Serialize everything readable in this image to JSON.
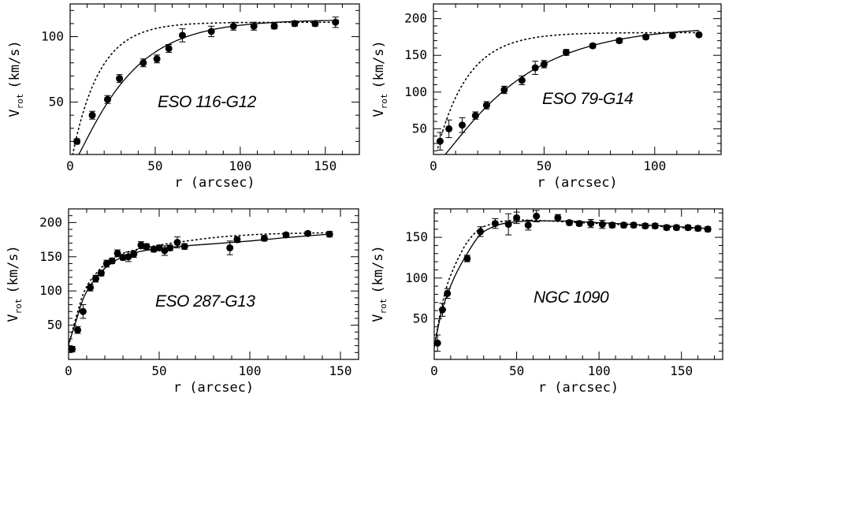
{
  "chart_data": [
    {
      "type": "scatter",
      "galaxy": "ESO 116-G12",
      "xlabel": "r (arcsec)",
      "ylabel_main": "V",
      "ylabel_sub": "rot",
      "ylabel_unit": "(km/s)",
      "xlim": [
        0,
        170
      ],
      "ylim": [
        10,
        125
      ],
      "xticks": [
        0,
        50,
        100,
        150
      ],
      "yticks": [
        50,
        100
      ],
      "points": [
        {
          "x": 4,
          "y": 20,
          "err": 2
        },
        {
          "x": 13,
          "y": 40,
          "err": 3
        },
        {
          "x": 22,
          "y": 52,
          "err": 3
        },
        {
          "x": 29,
          "y": 68,
          "err": 3
        },
        {
          "x": 43,
          "y": 80,
          "err": 3
        },
        {
          "x": 51,
          "y": 83,
          "err": 3
        },
        {
          "x": 58,
          "y": 91,
          "err": 3
        },
        {
          "x": 66,
          "y": 101,
          "err": 5
        },
        {
          "x": 83,
          "y": 104,
          "err": 4
        },
        {
          "x": 96,
          "y": 108,
          "err": 3
        },
        {
          "x": 108,
          "y": 108,
          "err": 3
        },
        {
          "x": 120,
          "y": 108,
          "err": 2
        },
        {
          "x": 132,
          "y": 110,
          "err": 2
        },
        {
          "x": 144,
          "y": 110,
          "err": 2
        },
        {
          "x": 156,
          "y": 111,
          "err": 4
        }
      ],
      "model_solid": {
        "vmax": 113,
        "rt": 28,
        "a": 1.35,
        "x0": 0,
        "x1": 158
      },
      "model_dotted": {
        "vmax": 111,
        "rt": 16,
        "a": 1.0,
        "x0": 0,
        "x1": 158
      }
    },
    {
      "type": "scatter",
      "galaxy": "ESO 79-G14",
      "xlabel": "r (arcsec)",
      "ylabel_main": "V",
      "ylabel_sub": "rot",
      "ylabel_unit": "(km/s)",
      "xlim": [
        0,
        130
      ],
      "ylim": [
        15,
        220
      ],
      "xticks": [
        0,
        50,
        100
      ],
      "yticks": [
        50,
        100,
        150,
        200
      ],
      "points": [
        {
          "x": 3,
          "y": 33,
          "err": 12
        },
        {
          "x": 7,
          "y": 50,
          "err": 12
        },
        {
          "x": 13,
          "y": 55,
          "err": 10
        },
        {
          "x": 19,
          "y": 68,
          "err": 5
        },
        {
          "x": 24,
          "y": 82,
          "err": 5
        },
        {
          "x": 32,
          "y": 103,
          "err": 5
        },
        {
          "x": 40,
          "y": 116,
          "err": 6
        },
        {
          "x": 46,
          "y": 133,
          "err": 9
        },
        {
          "x": 50,
          "y": 138,
          "err": 5
        },
        {
          "x": 60,
          "y": 154,
          "err": 4
        },
        {
          "x": 72,
          "y": 163,
          "err": 3
        },
        {
          "x": 84,
          "y": 170,
          "err": 3
        },
        {
          "x": 96,
          "y": 175,
          "err": 3
        },
        {
          "x": 108,
          "y": 177,
          "err": 2
        },
        {
          "x": 120,
          "y": 178,
          "err": 2
        }
      ],
      "model_solid": {
        "vmax": 190,
        "rt": 32,
        "a": 1.35,
        "x0": 2,
        "x1": 120
      },
      "model_dotted": {
        "vmax": 181,
        "rt": 14,
        "a": 1.0,
        "x0": 2,
        "x1": 120
      }
    },
    {
      "type": "scatter",
      "galaxy": "ESO 287-G13",
      "xlabel": "r (arcsec)",
      "ylabel_main": "V",
      "ylabel_sub": "rot",
      "ylabel_unit": "(km/s)",
      "xlim": [
        0,
        160
      ],
      "ylim": [
        0,
        220
      ],
      "xticks": [
        0,
        50,
        100,
        150
      ],
      "yticks": [
        50,
        100,
        150,
        200
      ],
      "points": [
        {
          "x": 2,
          "y": 15,
          "err": 4
        },
        {
          "x": 5,
          "y": 43,
          "err": 5
        },
        {
          "x": 8,
          "y": 70,
          "err": 10
        },
        {
          "x": 12,
          "y": 105,
          "err": 5
        },
        {
          "x": 15,
          "y": 118,
          "err": 5
        },
        {
          "x": 18,
          "y": 126,
          "err": 4
        },
        {
          "x": 21,
          "y": 140,
          "err": 5
        },
        {
          "x": 24,
          "y": 144,
          "err": 4
        },
        {
          "x": 27,
          "y": 155,
          "err": 5
        },
        {
          "x": 30,
          "y": 149,
          "err": 4
        },
        {
          "x": 33,
          "y": 150,
          "err": 7
        },
        {
          "x": 36,
          "y": 154,
          "err": 5
        },
        {
          "x": 40,
          "y": 167,
          "err": 5
        },
        {
          "x": 43,
          "y": 165,
          "err": 4
        },
        {
          "x": 47,
          "y": 161,
          "err": 4
        },
        {
          "x": 50,
          "y": 163,
          "err": 4
        },
        {
          "x": 53,
          "y": 159,
          "err": 7
        },
        {
          "x": 56,
          "y": 163,
          "err": 4
        },
        {
          "x": 60,
          "y": 171,
          "err": 8
        },
        {
          "x": 64,
          "y": 165,
          "err": 4
        },
        {
          "x": 89,
          "y": 163,
          "err": 10
        },
        {
          "x": 93,
          "y": 175,
          "err": 4
        },
        {
          "x": 108,
          "y": 177,
          "err": 4
        },
        {
          "x": 120,
          "y": 182,
          "err": 3
        },
        {
          "x": 132,
          "y": 184,
          "err": 3
        },
        {
          "x": 144,
          "y": 183,
          "err": 4
        }
      ],
      "model_solid": {
        "kind": "piecewise",
        "x": [
          0,
          4,
          8,
          12,
          16,
          20,
          25,
          30,
          40,
          50,
          60,
          80,
          100,
          120,
          144
        ],
        "y": [
          22,
          55,
          88,
          108,
          122,
          133,
          143,
          150,
          158,
          162,
          165,
          169,
          173,
          178,
          183
        ]
      },
      "model_dotted": {
        "kind": "piecewise",
        "x": [
          0,
          4,
          8,
          12,
          16,
          20,
          25,
          30,
          40,
          50,
          60,
          80,
          100,
          120,
          144
        ],
        "y": [
          20,
          60,
          95,
          115,
          128,
          139,
          148,
          155,
          162,
          167,
          171,
          178,
          182,
          184,
          185
        ]
      }
    },
    {
      "type": "scatter",
      "galaxy": "NGC 1090",
      "xlabel": "r (arcsec)",
      "ylabel_main": "V",
      "ylabel_sub": "rot",
      "ylabel_unit": "(km/s)",
      "xlim": [
        0,
        175
      ],
      "ylim": [
        0,
        185
      ],
      "xticks": [
        0,
        50,
        100,
        150
      ],
      "yticks": [
        50,
        100,
        150
      ],
      "points": [
        {
          "x": 2,
          "y": 20,
          "err": 10
        },
        {
          "x": 5,
          "y": 61,
          "err": 8
        },
        {
          "x": 8,
          "y": 81,
          "err": 6
        },
        {
          "x": 20,
          "y": 124,
          "err": 4
        },
        {
          "x": 28,
          "y": 157,
          "err": 6
        },
        {
          "x": 37,
          "y": 167,
          "err": 6
        },
        {
          "x": 45,
          "y": 166,
          "err": 13
        },
        {
          "x": 50,
          "y": 174,
          "err": 7
        },
        {
          "x": 57,
          "y": 165,
          "err": 6
        },
        {
          "x": 62,
          "y": 176,
          "err": 7
        },
        {
          "x": 75,
          "y": 174,
          "err": 4
        },
        {
          "x": 82,
          "y": 168,
          "err": 3
        },
        {
          "x": 88,
          "y": 167,
          "err": 3
        },
        {
          "x": 95,
          "y": 167,
          "err": 5
        },
        {
          "x": 102,
          "y": 166,
          "err": 5
        },
        {
          "x": 108,
          "y": 165,
          "err": 3
        },
        {
          "x": 115,
          "y": 165,
          "err": 3
        },
        {
          "x": 121,
          "y": 165,
          "err": 3
        },
        {
          "x": 128,
          "y": 164,
          "err": 3
        },
        {
          "x": 134,
          "y": 164,
          "err": 3
        },
        {
          "x": 141,
          "y": 162,
          "err": 3
        },
        {
          "x": 147,
          "y": 162,
          "err": 3
        },
        {
          "x": 154,
          "y": 162,
          "err": 3
        },
        {
          "x": 160,
          "y": 161,
          "err": 3
        },
        {
          "x": 166,
          "y": 160,
          "err": 3
        }
      ],
      "model_solid": {
        "kind": "piecewise",
        "x": [
          0,
          4,
          8,
          12,
          16,
          20,
          25,
          30,
          40,
          50,
          60,
          80,
          100,
          120,
          140,
          166
        ],
        "y": [
          15,
          55,
          80,
          100,
          116,
          130,
          146,
          157,
          166,
          169,
          170,
          170,
          168,
          166,
          164,
          161
        ]
      },
      "model_dotted": {
        "kind": "piecewise",
        "x": [
          0,
          4,
          8,
          12,
          16,
          20,
          25,
          30,
          40,
          50,
          60,
          80,
          100,
          120,
          140,
          166
        ],
        "y": [
          15,
          60,
          92,
          113,
          130,
          144,
          156,
          163,
          169,
          171,
          171,
          169,
          167,
          165,
          163,
          160
        ]
      }
    }
  ]
}
